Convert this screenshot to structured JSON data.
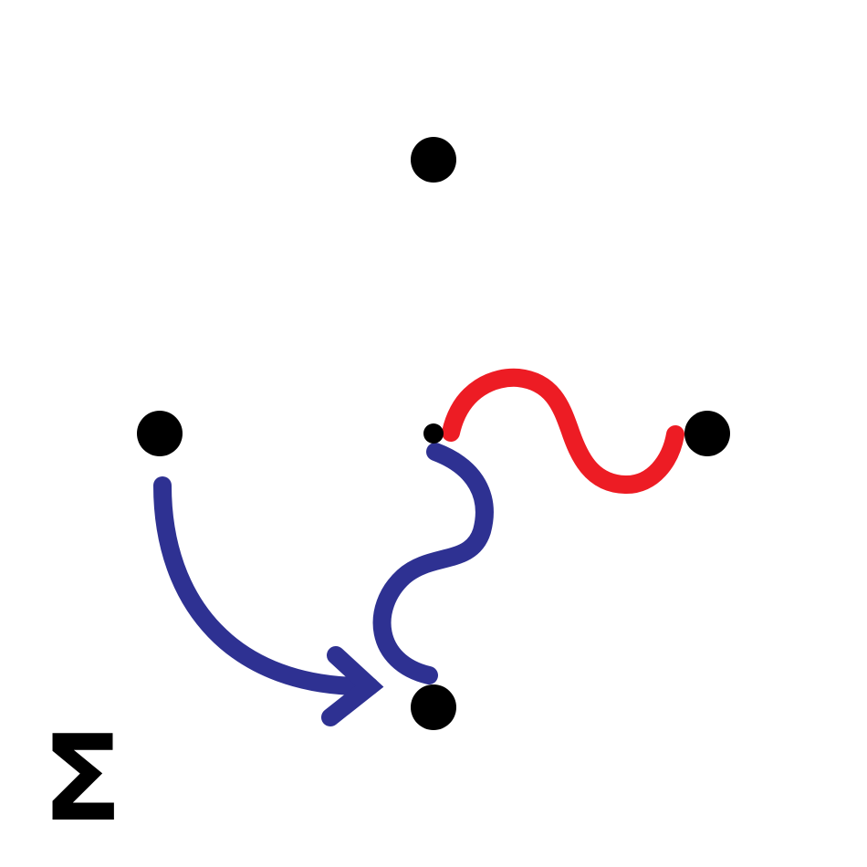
{
  "diagram": {
    "symbol": "Σ",
    "colors": {
      "background": "#ffffff",
      "node": "#000000",
      "blue_path": "#2e3192",
      "red_path": "#ed1c24"
    },
    "nodes": [
      {
        "id": "top"
      },
      {
        "id": "left"
      },
      {
        "id": "center"
      },
      {
        "id": "right"
      },
      {
        "id": "bottom"
      }
    ],
    "edges": [
      {
        "id": "left-to-bottom-arrow",
        "from": "left",
        "to": "bottom",
        "style": "curved-arrow",
        "color": "#2e3192"
      },
      {
        "id": "center-to-bottom-wave",
        "from": "center",
        "to": "bottom",
        "style": "s-curve",
        "color": "#2e3192"
      },
      {
        "id": "center-to-right-wave",
        "from": "center",
        "to": "right",
        "style": "sine-wave",
        "color": "#ed1c24"
      }
    ]
  }
}
